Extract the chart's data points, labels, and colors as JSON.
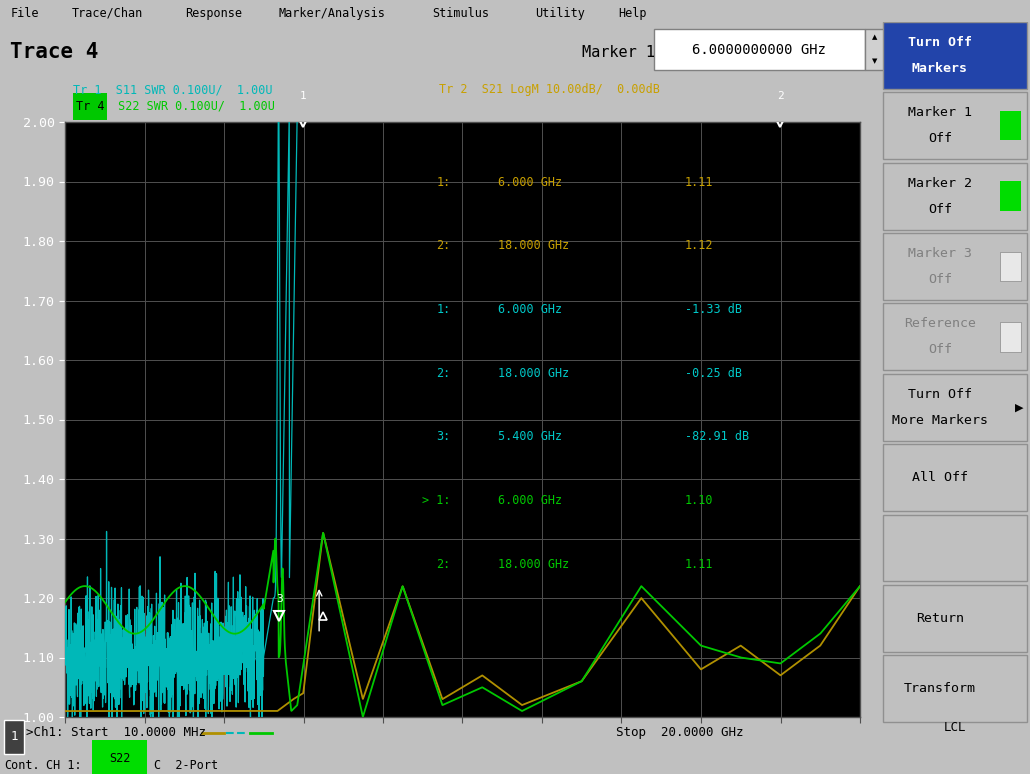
{
  "title_left": "Trace 4",
  "title_right": "Marker 1",
  "marker_freq": "6.0000000000 GHz",
  "trace1_label": "Tr 1  S11 SWR 0.100U/  1.00U",
  "trace2_label": "Tr 2  S21 LogM 10.00dB/  0.00dB",
  "trace4_label": "Tr 4  S22 SWR 0.100U/  1.00U",
  "start_freq": "10.0000 MHz",
  "stop_freq": "20.0000 GHz",
  "ymin": 1.0,
  "ymax": 2.0,
  "yticks": [
    1.0,
    1.1,
    1.2,
    1.3,
    1.4,
    1.5,
    1.6,
    1.7,
    1.8,
    1.9,
    2.0
  ],
  "xmin": 0.01,
  "xmax": 20.0,
  "bg_color": "#c0c0c0",
  "plot_bg": "#000000",
  "grid_color": "#505050",
  "trace1_color": "#00b8b8",
  "trace2_color": "#b09000",
  "trace4_color": "#00c800",
  "ann_color_s11": "#c8a000",
  "ann_color_s21": "#00c8c8",
  "ann_color_s22": "#00c800",
  "btn_blue": "#2244aa",
  "btn_gray": "#c0c0c0",
  "btn_dark_gray": "#a0a0a0",
  "marker_annotations": [
    {
      "num": "1:",
      "freq": "6.000 GHz",
      "val": "1.11",
      "color": "#c8a000"
    },
    {
      "num": "2:",
      "freq": "18.000 GHz",
      "val": "1.12",
      "color": "#c8a000"
    },
    {
      "num": "1:",
      "freq": "6.000 GHz",
      "val": "-1.33 dB",
      "color": "#00c8c8"
    },
    {
      "num": "2:",
      "freq": "18.000 GHz",
      "val": "-0.25 dB",
      "color": "#00c8c8"
    },
    {
      "num": "3:",
      "freq": "5.400 GHz",
      "val": "-82.91 dB",
      "color": "#00c8c8"
    },
    {
      "num": "> 1:",
      "freq": "6.000 GHz",
      "val": "1.10",
      "color": "#00c800"
    },
    {
      "num": "2:",
      "freq": "18.000 GHz",
      "val": "1.11",
      "color": "#00c800"
    }
  ],
  "menu_items": [
    "File",
    "Trace/Chan",
    "Response",
    "Marker/Analysis",
    "Stimulus",
    "Utility",
    "Help"
  ],
  "ch1_val": "S22",
  "port_label": "C  2-Port",
  "cont_label": "Cont.",
  "ch1_label": "CH 1:",
  "lcl_label": "LCL"
}
